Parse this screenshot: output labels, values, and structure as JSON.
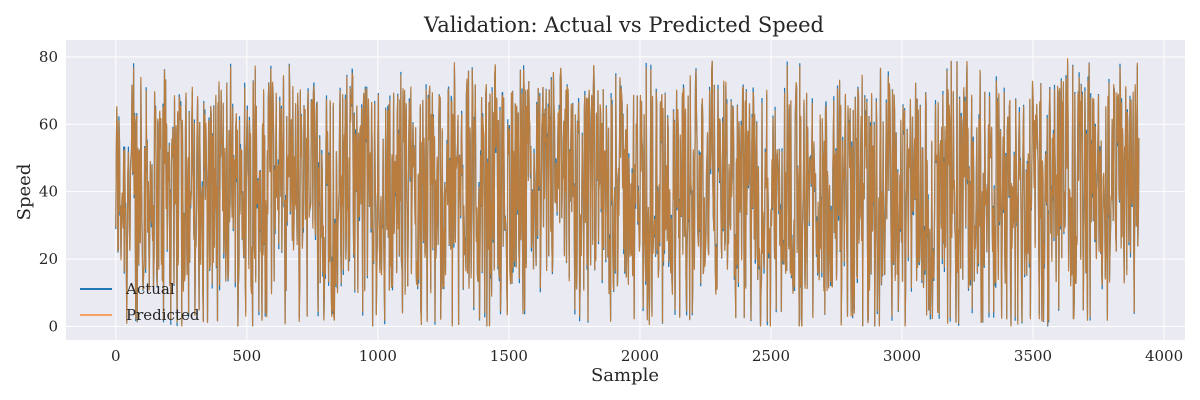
{
  "chart_data": {
    "type": "line",
    "title": "Validation: Actual vs Predicted Speed",
    "xlabel": "Sample",
    "ylabel": "Speed",
    "xlim": [
      -190,
      4080
    ],
    "ylim": [
      -4,
      85
    ],
    "xticks": [
      0,
      500,
      1000,
      1500,
      2000,
      2500,
      3000,
      3500,
      4000
    ],
    "yticks": [
      0,
      20,
      40,
      60,
      80
    ],
    "grid": true,
    "legend_position": "lower-left",
    "n_samples": 3905,
    "series": [
      {
        "name": "Actual",
        "color": "#1f77b4",
        "summary": {
          "min": 0,
          "max": 81,
          "typical_range": [
            10,
            75
          ]
        }
      },
      {
        "name": "Predicted",
        "color": "#f4a261",
        "summary": {
          "min": 0,
          "max": 80,
          "typical_range": [
            10,
            75
          ]
        }
      }
    ],
    "overlap_color": "#b87d3f",
    "background_color": "#eaeaf2"
  }
}
